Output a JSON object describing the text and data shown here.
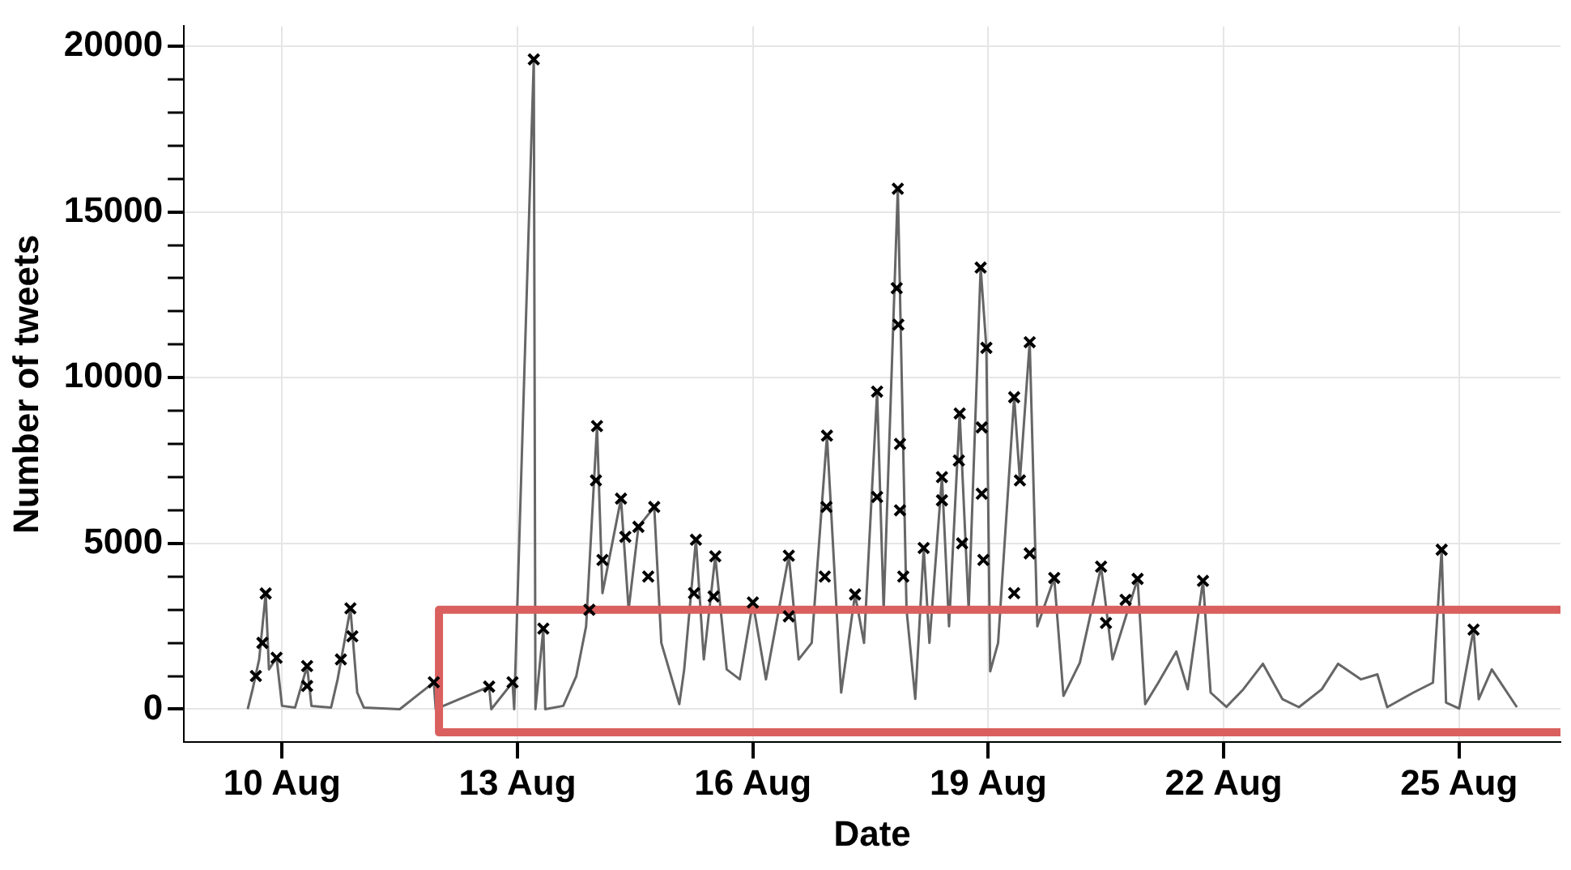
{
  "chart_data": {
    "type": "line",
    "xlabel": "Date",
    "ylabel": "Number of tweets",
    "xlim": [
      "--08-08T18:00",
      "--08-26T07:00"
    ],
    "xticks": [
      {
        "value": "--08-10",
        "label": "10 Aug"
      },
      {
        "value": "--08-13",
        "label": "13 Aug"
      },
      {
        "value": "--08-16",
        "label": "16 Aug"
      },
      {
        "value": "--08-19",
        "label": "19 Aug"
      },
      {
        "value": "--08-22",
        "label": "22 Aug"
      },
      {
        "value": "--08-25",
        "label": "25 Aug"
      }
    ],
    "ylim": [
      -1000,
      20600
    ],
    "yticks": [
      0,
      {
        "value": 1000,
        "label": null
      },
      {
        "value": 2000,
        "label": null
      },
      {
        "value": 3000,
        "label": null
      },
      {
        "value": 4000,
        "label": null
      },
      5000,
      {
        "value": 6000,
        "label": null
      },
      {
        "value": 7000,
        "label": null
      },
      {
        "value": 8000,
        "label": null
      },
      {
        "value": 9000,
        "label": null
      },
      10000,
      {
        "value": 11000,
        "label": null
      },
      {
        "value": 12000,
        "label": null
      },
      {
        "value": 13000,
        "label": null
      },
      {
        "value": 14000,
        "label": null
      },
      15000,
      {
        "value": 16000,
        "label": null
      },
      {
        "value": 17000,
        "label": null
      },
      {
        "value": 18000,
        "label": null
      },
      {
        "value": 19000,
        "label": null
      },
      20000
    ],
    "grid": true,
    "legend": false,
    "series": [
      {
        "type": "line",
        "color": "#666666",
        "marker": "none",
        "line_style": "solid",
        "x": [
          "--08-09T13:30",
          "--08-09T15:00",
          "--08-09T17:00",
          "--08-09T19:00",
          "--08-09T20:00",
          "--08-09T22:20",
          "--08-10T00:00",
          "--08-10T04:00",
          "--08-10T07:40",
          "--08-10T09:00",
          "--08-10T15:00",
          "--08-10T17:00",
          "--08-10T20:55",
          "--08-10T23:00",
          "--08-11T01:00",
          "--08-11T12:00",
          "--08-11T22:25",
          "--08-11T23:00",
          "--08-12T15:20",
          "--08-12T16:00",
          "--08-12T22:30",
          "--08-12T23:00",
          "--08-13T05:00",
          "--08-13T05:30",
          "--08-13T07:55",
          "--08-13T08:30",
          "--08-13T14:00",
          "--08-13T18:00",
          "--08-13T21:00",
          "--08-14T00:20",
          "--08-14T02:00",
          "--08-14T07:40",
          "--08-14T10:00",
          "--08-14T13:00",
          "--08-14T17:50",
          "--08-14T20:00",
          "--08-15T01:30",
          "--08-15T03:00",
          "--08-15T06:35",
          "--08-15T09:00",
          "--08-15T12:30",
          "--08-15T16:00",
          "--08-15T20:00",
          "--08-16T00:00",
          "--08-16T04:00",
          "--08-16T11:00",
          "--08-16T14:00",
          "--08-16T18:00",
          "--08-16T22:40",
          "--08-17T03:00",
          "--08-17T07:15",
          "--08-17T10:00",
          "--08-17T14:00",
          "--08-17T16:00",
          "--08-17T20:20",
          "--08-17T23:00",
          "--08-18T01:40",
          "--08-18T04:15",
          "--08-18T06:00",
          "--08-18T09:50",
          "--08-18T12:00",
          "--08-18T15:15",
          "--08-18T18:00",
          "--08-18T21:40",
          "--08-18T23:25",
          "--08-19T00:35",
          "--08-19T03:00",
          "--08-19T07:55",
          "--08-19T09:40",
          "--08-19T12:40",
          "--08-19T15:00",
          "--08-19T20:10",
          "--08-19T23:00",
          "--08-20T04:00",
          "--08-20T10:30",
          "--08-20T14:00",
          "--08-20T21:40",
          "--08-21T00:00",
          "--08-21T04:00",
          "--08-21T09:30",
          "--08-21T13:00",
          "--08-21T17:40",
          "--08-21T20:00",
          "--08-22T00:50",
          "--08-22T06:00",
          "--08-22T12:00",
          "--08-22T18:00",
          "--08-22T23:00",
          "--08-23T06:00",
          "--08-23T11:00",
          "--08-23T18:00",
          "--08-23T23:00",
          "--08-24T02:00",
          "--08-24T10:00",
          "--08-24T16:00",
          "--08-24T18:40",
          "--08-24T20:00",
          "--08-25T00:00",
          "--08-25T04:25",
          "--08-25T06:00",
          "--08-25T10:00",
          "--08-25T17:40"
        ],
        "values": [
          0,
          600,
          1500,
          3490,
          1200,
          1550,
          100,
          50,
          1300,
          100,
          50,
          900,
          3040,
          500,
          50,
          0,
          810,
          0,
          680,
          0,
          810,
          0,
          19600,
          0,
          2430,
          0,
          100,
          1000,
          2500,
          8540,
          3500,
          6350,
          3000,
          5500,
          6100,
          2000,
          150,
          1200,
          5110,
          1500,
          4610,
          1200,
          900,
          3220,
          900,
          4630,
          1500,
          2000,
          8250,
          500,
          3460,
          2000,
          9580,
          3000,
          15700,
          3000,
          310,
          4860,
          2000,
          7000,
          2500,
          8920,
          3000,
          13320,
          10900,
          1140,
          2000,
          9410,
          6900,
          11070,
          2500,
          3960,
          400,
          1400,
          4300,
          1500,
          3930,
          150,
          800,
          1740,
          600,
          3870,
          500,
          70,
          600,
          1370,
          300,
          60,
          600,
          1370,
          900,
          1050,
          60,
          500,
          800,
          4810,
          200,
          20,
          2400,
          300,
          1200,
          60
        ]
      },
      {
        "type": "line",
        "color": "#d9605f",
        "marker": "none",
        "line_style": "solid",
        "x": [
          "--08-26T07:00",
          "--08-12T00:00",
          "--08-12T00:00",
          "--08-26T07:00"
        ],
        "values": [
          3000,
          3000,
          -700,
          -700
        ]
      },
      {
        "type": "scatter",
        "color": "#000000",
        "marker": "cross",
        "x": [
          "--08-09T16:00",
          "--08-09T18:00",
          "--08-09T19:00",
          "--08-09T22:20",
          "--08-10T07:40",
          "--08-10T07:40",
          "--08-10T18:00",
          "--08-10T20:55",
          "--08-10T21:30",
          "--08-11T22:25",
          "--08-12T15:20",
          "--08-12T22:30",
          "--08-13T05:00",
          "--08-13T07:55",
          "--08-13T22:00",
          "--08-14T00:20",
          "--08-14T00:00",
          "--08-14T02:00",
          "--08-14T07:40",
          "--08-14T09:00",
          "--08-14T13:00",
          "--08-14T17:50",
          "--08-14T16:00",
          "--08-15T06:35",
          "--08-15T06:00",
          "--08-15T12:30",
          "--08-15T12:00",
          "--08-16T00:00",
          "--08-16T11:00",
          "--08-16T11:00",
          "--08-16T22:40",
          "--08-16T22:30",
          "--08-16T22:00",
          "--08-17T07:15",
          "--08-17T14:00",
          "--08-17T14:00",
          "--08-17T20:20",
          "--08-17T20:00",
          "--08-17T20:30",
          "--08-17T21:00",
          "--08-17T21:00",
          "--08-17T22:00",
          "--08-18T04:15",
          "--08-18T09:50",
          "--08-18T09:50",
          "--08-18T15:15",
          "--08-18T15:00",
          "--08-18T16:00",
          "--08-18T21:40",
          "--08-18T23:25",
          "--08-18T22:00",
          "--08-18T22:00",
          "--08-18T22:30",
          "--08-19T07:55",
          "--08-19T07:55",
          "--08-19T09:40",
          "--08-19T12:40",
          "--08-19T12:40",
          "--08-19T20:10",
          "--08-20T10:30",
          "--08-20T12:00",
          "--08-20T18:00",
          "--08-20T21:40",
          "--08-21T17:40",
          "--08-24T18:40",
          "--08-25T04:25"
        ],
        "values": [
          1000,
          2000,
          3490,
          1550,
          1300,
          700,
          1500,
          3040,
          2200,
          810,
          680,
          810,
          19600,
          2430,
          3000,
          8540,
          6900,
          4500,
          6350,
          5200,
          5500,
          6100,
          4000,
          5110,
          3500,
          4610,
          3400,
          3220,
          4630,
          2800,
          8250,
          6100,
          4000,
          3460,
          9580,
          6400,
          15700,
          12700,
          11600,
          8000,
          6000,
          4000,
          4860,
          7000,
          6300,
          8920,
          7500,
          5000,
          13320,
          10900,
          8500,
          6500,
          4500,
          9410,
          3500,
          6900,
          11070,
          4700,
          3960,
          4300,
          2600,
          3300,
          3930,
          3870,
          4810,
          2400
        ]
      }
    ]
  }
}
